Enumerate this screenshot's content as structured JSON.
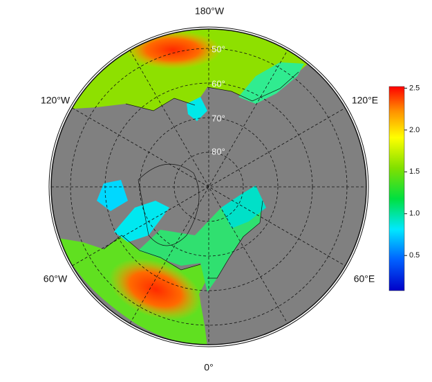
{
  "map": {
    "meridian_labels": [
      "180°W",
      "120°W",
      "120°E",
      "60°W",
      "60°E",
      "0°"
    ],
    "parallel_labels": [
      "50°",
      "60°",
      "70°",
      "80°"
    ],
    "colorbar": {
      "lim": [
        0.08,
        2.52
      ],
      "ticks": [
        0.5,
        {
          "value": 1,
          "label": "1.0"
        },
        1.5,
        {
          "value": 2,
          "label": "2.0"
        },
        2.5
      ]
    }
  }
}
